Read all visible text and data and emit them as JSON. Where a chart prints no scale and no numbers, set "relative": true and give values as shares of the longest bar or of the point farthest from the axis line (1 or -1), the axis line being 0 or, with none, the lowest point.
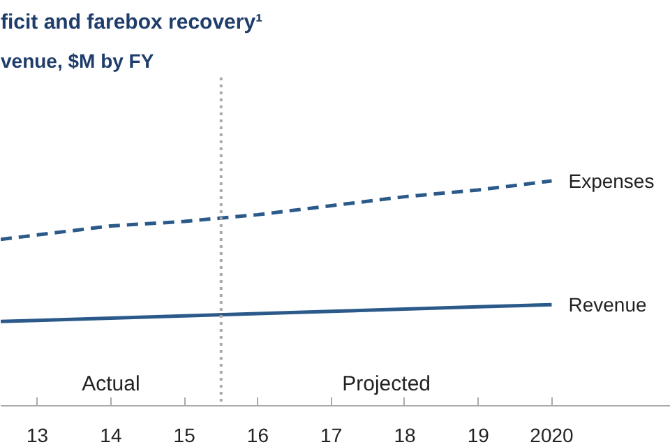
{
  "chart_data": {
    "type": "line",
    "title": "ficit and farebox recovery¹",
    "subtitle": "venue, $M by FY",
    "x": [
      2012.5,
      2013,
      2014,
      2015,
      2016,
      2017,
      2018,
      2019,
      2020
    ],
    "xlim": [
      2012.5,
      2021.62
    ],
    "xticks": [
      {
        "value": 2013,
        "label": "13"
      },
      {
        "value": 2014,
        "label": "14"
      },
      {
        "value": 2015,
        "label": "15"
      },
      {
        "value": 2016,
        "label": "16"
      },
      {
        "value": 2017,
        "label": "17"
      },
      {
        "value": 2018,
        "label": "18"
      },
      {
        "value": 2019,
        "label": "19"
      },
      2020
    ],
    "relative": true,
    "series": [
      {
        "name": "Expenses",
        "color": "#2b5a8a",
        "line_style": "dashed",
        "values": [
          0.74,
          0.76,
          0.8,
          0.82,
          0.85,
          0.89,
          0.93,
          0.96,
          1.0
        ]
      },
      {
        "name": "Revenue",
        "color": "#2b5a8a",
        "line_style": "solid",
        "values": [
          0.375,
          0.38,
          0.39,
          0.4,
          0.41,
          0.42,
          0.43,
          0.44,
          0.45
        ]
      }
    ],
    "ref_lines": [
      {
        "axis": "x",
        "value": 2015.5,
        "color": "#aaaaaa",
        "line_style": "dotted"
      }
    ],
    "annotations": [
      "Actual",
      "Projected"
    ],
    "grid": false
  }
}
